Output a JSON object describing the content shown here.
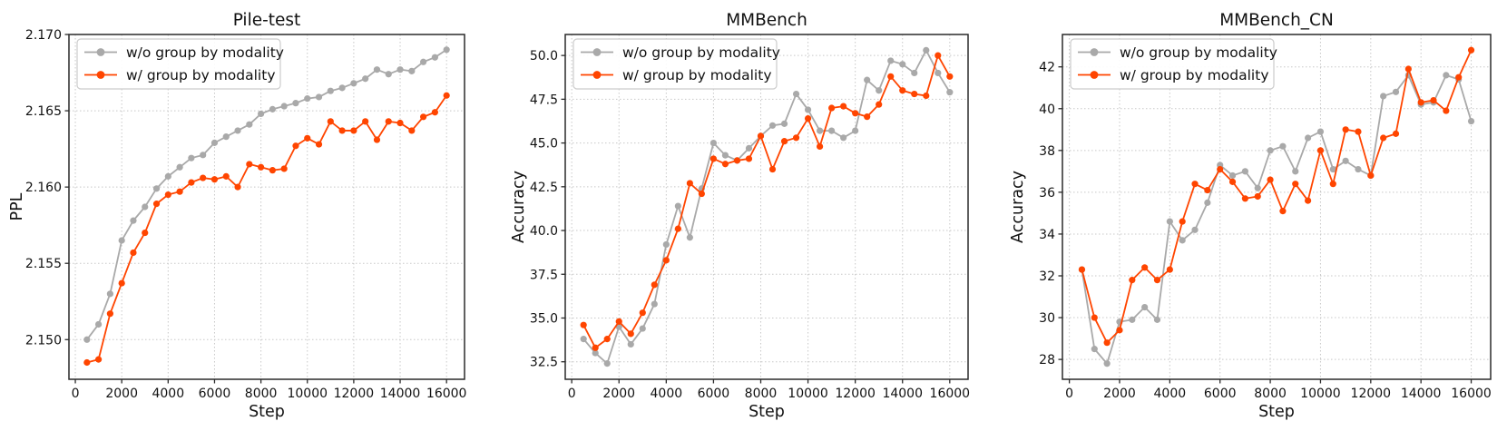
{
  "figure": {
    "background": "#ffffff",
    "grid_color": "#c8c8c8",
    "spine_color": "#2a2a2a",
    "text_color": "#111111",
    "legend_border_color": "#cccccc",
    "legend_background": "#ffffff"
  },
  "chart_data": [
    {
      "id": "pile-test",
      "type": "line",
      "title": "Pile-test",
      "xlabel": "Step",
      "ylabel": "PPL",
      "grid": true,
      "legend_position": "upper left",
      "x": [
        500,
        1000,
        1500,
        2000,
        2500,
        3000,
        3500,
        4000,
        4500,
        5000,
        5500,
        6000,
        6500,
        7000,
        7500,
        8000,
        8500,
        9000,
        9500,
        10000,
        10500,
        11000,
        11500,
        12000,
        12500,
        13000,
        13500,
        14000,
        14500,
        15000,
        15500,
        16000
      ],
      "series": [
        {
          "name": "w/o group by modality",
          "color": "#a9a9a9",
          "values": [
            2.15,
            2.151,
            2.153,
            2.1565,
            2.1578,
            2.1587,
            2.1599,
            2.1607,
            2.1613,
            2.1619,
            2.1621,
            2.1629,
            2.1633,
            2.1637,
            2.1641,
            2.1648,
            2.1651,
            2.1653,
            2.1655,
            2.1658,
            2.1659,
            2.1663,
            2.1665,
            2.1668,
            2.1671,
            2.1677,
            2.1674,
            2.1677,
            2.1676,
            2.1682,
            2.1685,
            2.169
          ]
        },
        {
          "name": "w/ group by modality",
          "color": "#ff4500",
          "values": [
            2.1485,
            2.1487,
            2.1517,
            2.1537,
            2.1557,
            2.157,
            2.1589,
            2.1595,
            2.1597,
            2.1603,
            2.1606,
            2.1605,
            2.1607,
            2.16,
            2.1615,
            2.1613,
            2.1611,
            2.1612,
            2.1627,
            2.1632,
            2.1628,
            2.1643,
            2.1637,
            2.1637,
            2.1643,
            2.1631,
            2.1643,
            2.1642,
            2.1637,
            2.1646,
            2.1649,
            2.166
          ]
        }
      ],
      "xlim": [
        -275,
        16775
      ],
      "ylim": [
        2.1474,
        2.17
      ],
      "xticks": [
        0,
        2000,
        4000,
        6000,
        8000,
        10000,
        12000,
        14000,
        16000
      ],
      "yticks": [
        2.15,
        2.155,
        2.16,
        2.165,
        2.17
      ],
      "ytick_decimals": 3
    },
    {
      "id": "mmbench",
      "type": "line",
      "title": "MMBench",
      "xlabel": "Step",
      "ylabel": "Accuracy",
      "grid": true,
      "legend_position": "upper left",
      "x": [
        500,
        1000,
        1500,
        2000,
        2500,
        3000,
        3500,
        4000,
        4500,
        5000,
        5500,
        6000,
        6500,
        7000,
        7500,
        8000,
        8500,
        9000,
        9500,
        10000,
        10500,
        11000,
        11500,
        12000,
        12500,
        13000,
        13500,
        14000,
        14500,
        15000,
        15500,
        16000
      ],
      "series": [
        {
          "name": "w/o group by modality",
          "color": "#a9a9a9",
          "values": [
            33.8,
            33.0,
            32.4,
            34.5,
            33.5,
            34.4,
            35.8,
            39.2,
            41.4,
            39.6,
            42.4,
            45.0,
            44.3,
            44.0,
            44.7,
            45.4,
            46.0,
            46.1,
            47.8,
            46.9,
            45.7,
            45.7,
            45.3,
            45.7,
            48.6,
            48.0,
            49.7,
            49.5,
            49.0,
            50.3,
            49.0,
            47.9
          ]
        },
        {
          "name": "w/ group by modality",
          "color": "#ff4500",
          "values": [
            34.6,
            33.3,
            33.8,
            34.8,
            34.1,
            35.3,
            36.9,
            38.3,
            40.1,
            42.7,
            42.1,
            44.1,
            43.8,
            44.0,
            44.1,
            45.4,
            43.5,
            45.1,
            45.3,
            46.4,
            44.8,
            47.0,
            47.1,
            46.7,
            46.5,
            47.2,
            48.8,
            48.0,
            47.8,
            47.7,
            50.0,
            48.8
          ]
        }
      ],
      "xlim": [
        -275,
        16775
      ],
      "ylim": [
        31.5,
        51.2
      ],
      "xticks": [
        0,
        2000,
        4000,
        6000,
        8000,
        10000,
        12000,
        14000,
        16000
      ],
      "yticks": [
        32.5,
        35.0,
        37.5,
        40.0,
        42.5,
        45.0,
        47.5,
        50.0
      ],
      "ytick_decimals": 1
    },
    {
      "id": "mmbench-cn",
      "type": "line",
      "title": "MMBench_CN",
      "xlabel": "Step",
      "ylabel": "Accuracy",
      "grid": true,
      "legend_position": "upper left",
      "x": [
        500,
        1000,
        1500,
        2000,
        2500,
        3000,
        3500,
        4000,
        4500,
        5000,
        5500,
        6000,
        6500,
        7000,
        7500,
        8000,
        8500,
        9000,
        9500,
        10000,
        10500,
        11000,
        11500,
        12000,
        12500,
        13000,
        13500,
        14000,
        14500,
        15000,
        15500,
        16000
      ],
      "series": [
        {
          "name": "w/o group by modality",
          "color": "#a9a9a9",
          "values": [
            32.3,
            28.5,
            27.8,
            29.8,
            29.9,
            30.5,
            29.9,
            34.6,
            33.7,
            34.2,
            35.5,
            37.3,
            36.8,
            37.0,
            36.2,
            38.0,
            38.2,
            37.0,
            38.6,
            38.9,
            37.1,
            37.5,
            37.1,
            36.8,
            40.6,
            40.8,
            41.6,
            40.2,
            40.3,
            41.6,
            41.4,
            39.4
          ]
        },
        {
          "name": "w/ group by modality",
          "color": "#ff4500",
          "values": [
            32.3,
            30.0,
            28.8,
            29.4,
            31.8,
            32.4,
            31.8,
            32.3,
            34.6,
            36.4,
            36.1,
            37.1,
            36.5,
            35.7,
            35.8,
            36.6,
            35.1,
            36.4,
            35.6,
            38.0,
            36.4,
            39.0,
            38.9,
            36.8,
            38.6,
            38.8,
            41.9,
            40.3,
            40.4,
            39.9,
            41.5,
            42.8
          ]
        }
      ],
      "xlim": [
        -275,
        16775
      ],
      "ylim": [
        27.05,
        43.55
      ],
      "xticks": [
        0,
        2000,
        4000,
        6000,
        8000,
        10000,
        12000,
        14000,
        16000
      ],
      "yticks": [
        28,
        30,
        32,
        34,
        36,
        38,
        40,
        42
      ],
      "ytick_decimals": 0
    }
  ]
}
